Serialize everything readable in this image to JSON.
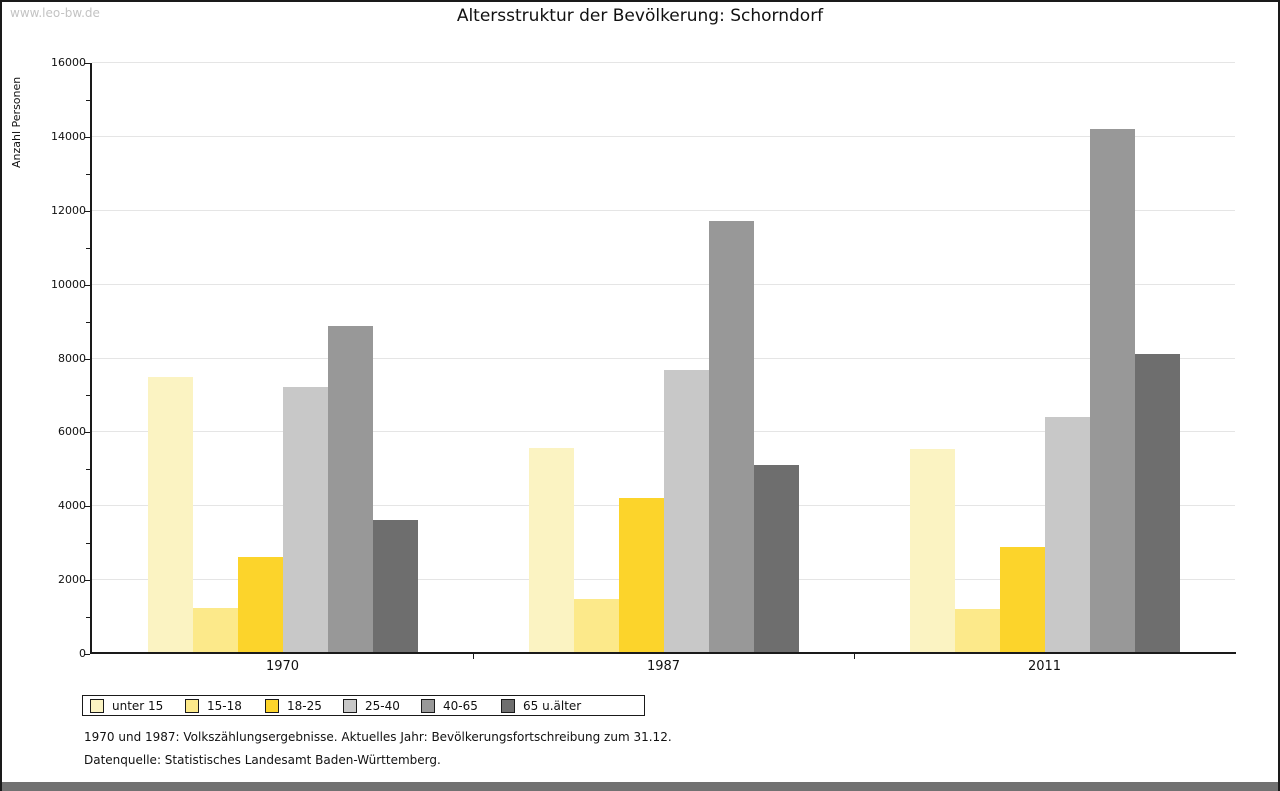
{
  "watermark": "www.leo-bw.de",
  "title": "Altersstruktur der Bevölkerung: Schorndorf",
  "chart_data": {
    "type": "bar",
    "title": "Altersstruktur der Bevölkerung: Schorndorf",
    "ylabel": "Anzahl Personen",
    "xlabel": "",
    "categories": [
      "1970",
      "1987",
      "2011"
    ],
    "series": [
      {
        "name": "unter 15",
        "color": "#fbf3c2",
        "values": [
          7500,
          5570,
          5550
        ]
      },
      {
        "name": "15-18",
        "color": "#fce98a",
        "values": [
          1240,
          1490,
          1220
        ]
      },
      {
        "name": "18-25",
        "color": "#fcd42b",
        "values": [
          2620,
          4210,
          2900
        ]
      },
      {
        "name": "25-40",
        "color": "#c8c8c8",
        "values": [
          7230,
          7700,
          6410
        ]
      },
      {
        "name": "40-65",
        "color": "#989898",
        "values": [
          8890,
          11710,
          14220
        ]
      },
      {
        "name": "65 u.älter",
        "color": "#6e6e6e",
        "values": [
          3630,
          5110,
          8110
        ]
      }
    ],
    "ylim": [
      0,
      16000
    ],
    "ytick_step": 2000,
    "yminor_step": 1000,
    "grid": true,
    "legend_position": "bottom-left"
  },
  "footer": {
    "line1": "1970 und 1987: Volkszählungsergebnisse. Aktuelles Jahr: Bevölkerungsfortschreibung zum 31.12.",
    "line2": "Datenquelle: Statistisches Landesamt Baden-Württemberg."
  },
  "style": {
    "gridline_color": "#e5e5e5",
    "axis_color": "#1a1a1a",
    "watermark_color": "#c3c3c3",
    "bottom_bar_color": "#717171"
  }
}
